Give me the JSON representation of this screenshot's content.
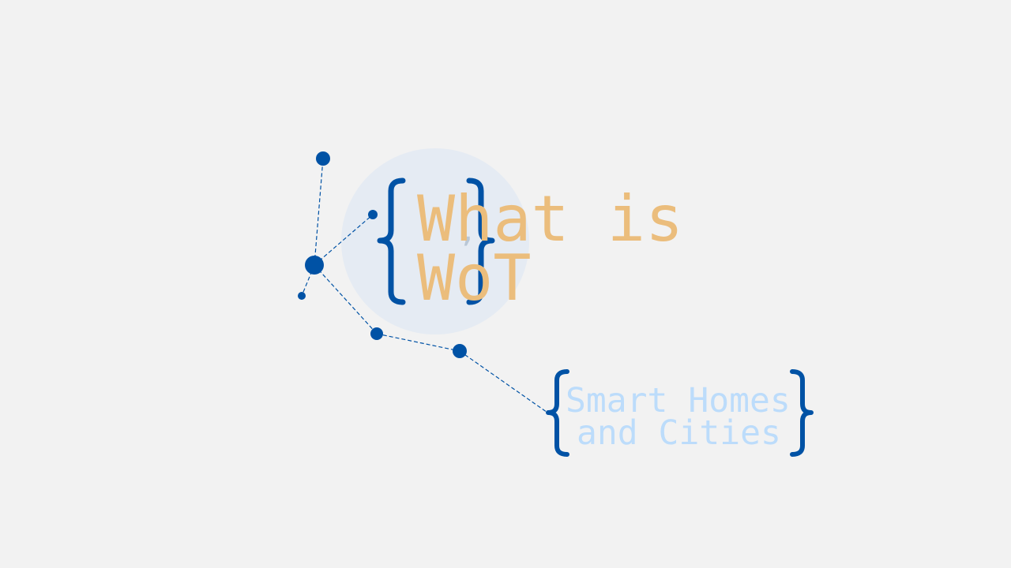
{
  "colors": {
    "background": "#f2f2f2",
    "circle": "#e5ebf3",
    "accent_blue": "#0052a5",
    "title_orange": "#ebbd7c",
    "subtitle_light_blue": "#bcdcfb",
    "comma_gray": "#b9c7d6"
  },
  "title": {
    "line1": "What is",
    "line2": "WoT"
  },
  "subtitle": {
    "line1": "Smart Homes",
    "line2": "and Cities"
  },
  "decor": {
    "comma": ","
  }
}
